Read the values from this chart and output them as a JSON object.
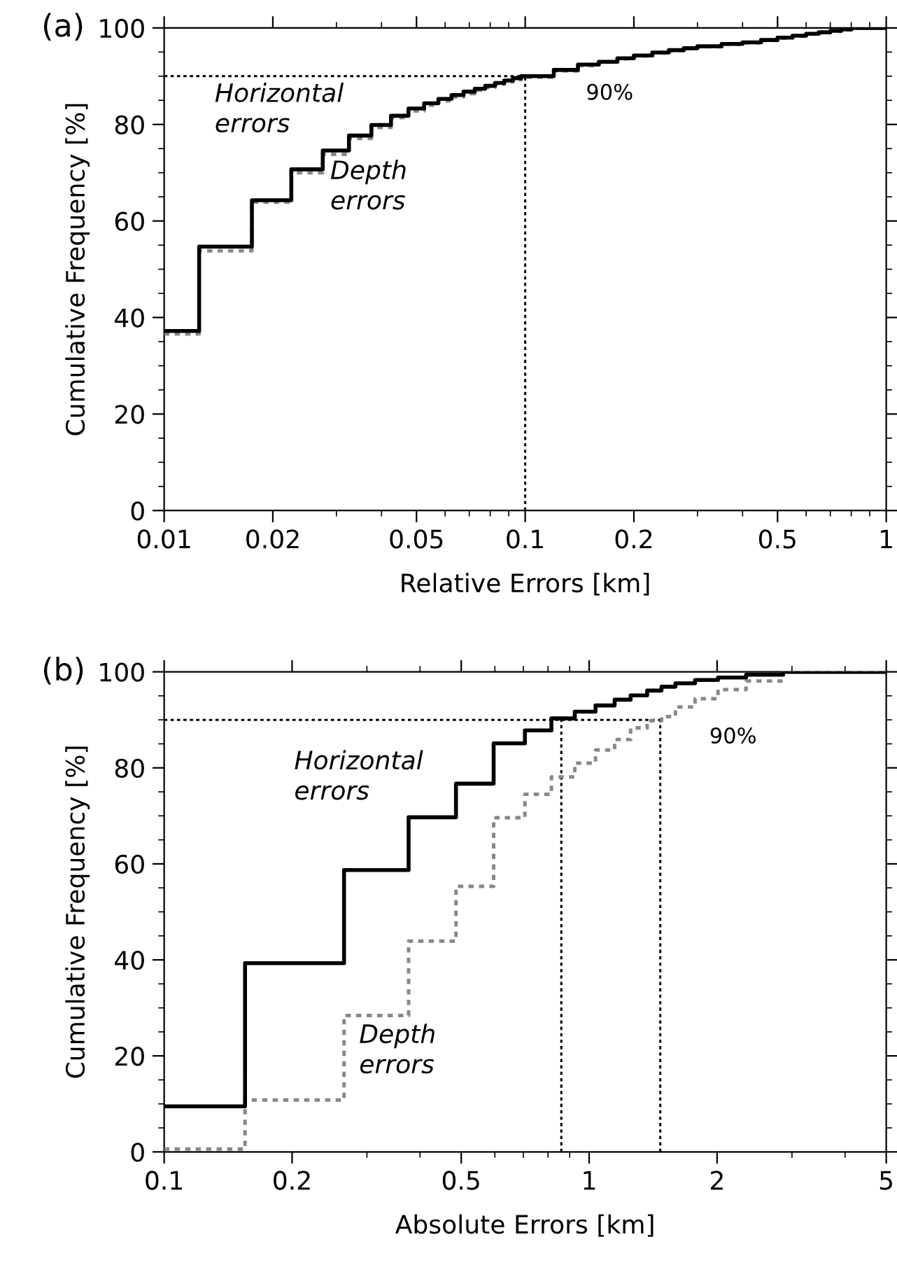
{
  "chart_data": [
    {
      "type": "step",
      "title": "(a)",
      "xlabel": "Relative Errors [km]",
      "ylabel": "Cumulative Frequency [%]",
      "log": "x",
      "xlim": [
        0.01,
        1
      ],
      "xticks": [
        0.01,
        0.02,
        0.05,
        0.1,
        0.2,
        0.5,
        1
      ],
      "ylim": [
        0,
        100
      ],
      "yticks": [
        0,
        20,
        40,
        60,
        80,
        100
      ],
      "grid": false,
      "legend": false,
      "series": [
        {
          "name": "Horizontal\nerrors",
          "color": "#000000",
          "line_style": "solid",
          "x": [
            0.01,
            0.0125,
            0.0175,
            0.0225,
            0.0275,
            0.0325,
            0.0375,
            0.0425,
            0.0475,
            0.0525,
            0.0575,
            0.0625,
            0.0675,
            0.0725,
            0.0775,
            0.0825,
            0.0875,
            0.0925,
            0.0975,
            0.12,
            0.14,
            0.16,
            0.18,
            0.2,
            0.225,
            0.25,
            0.275,
            0.3,
            0.35,
            0.4,
            0.45,
            0.5,
            0.55,
            0.6,
            0.65,
            0.7,
            0.75,
            0.8,
            1
          ],
          "values": [
            37.2,
            54.7,
            64.3,
            70.7,
            74.6,
            77.7,
            79.9,
            81.8,
            83.3,
            84.4,
            85.3,
            86.1,
            86.8,
            87.4,
            88.0,
            88.6,
            89.1,
            89.6,
            90.0,
            91.3,
            92.4,
            93.0,
            93.7,
            94.3,
            94.9,
            95.4,
            95.8,
            96.2,
            96.7,
            97.0,
            97.5,
            98.0,
            98.4,
            98.8,
            99.1,
            99.4,
            99.7,
            100,
            100
          ]
        },
        {
          "name": "Depth\nerrors",
          "color": "#888888",
          "line_style": "dotted",
          "x": [
            0.01,
            0.0125,
            0.0175,
            0.0225,
            0.0275,
            0.0325,
            0.0375,
            0.0425,
            0.0475,
            0.0525,
            0.0575,
            0.0625,
            0.0675,
            0.0725,
            0.0775,
            0.0825,
            0.0875,
            0.0925,
            0.0975,
            0.12,
            0.14,
            0.16,
            0.18,
            0.2,
            0.225,
            0.25,
            0.275,
            0.3,
            0.35,
            0.4,
            0.45,
            0.5,
            0.55,
            0.6,
            0.65,
            0.7,
            0.75,
            0.8,
            1
          ],
          "values": [
            36.6,
            53.8,
            63.9,
            70.0,
            73.8,
            77.1,
            79.4,
            81.4,
            82.8,
            84.0,
            84.9,
            85.7,
            86.4,
            87.1,
            87.7,
            88.3,
            88.8,
            89.3,
            89.8,
            91.1,
            92.2,
            92.9,
            93.6,
            94.2,
            94.8,
            95.3,
            95.7,
            96.1,
            96.6,
            96.9,
            97.4,
            97.9,
            98.3,
            98.7,
            99.0,
            99.3,
            99.6,
            100,
            100
          ]
        }
      ],
      "ref_lines": [
        {
          "axis": "y",
          "value": 90,
          "color": "#000000",
          "line_style": "dotted"
        },
        {
          "axis": "x",
          "value": 0.1,
          "color": "#000000",
          "line_style": "dotted"
        }
      ],
      "annotations": [
        "90%"
      ]
    },
    {
      "type": "step",
      "title": "(b)",
      "xlabel": "Absolute Errors [km]",
      "ylabel": "Cumulative Frequency [%]",
      "log": "x",
      "xlim": [
        0.1,
        5
      ],
      "xticks": [
        0.1,
        0.2,
        0.5,
        1,
        2,
        5
      ],
      "ylim": [
        0,
        100
      ],
      "yticks": [
        0,
        20,
        40,
        60,
        80,
        100
      ],
      "grid": false,
      "legend": false,
      "series": [
        {
          "name": "Horizontal\nerrors",
          "color": "#000000",
          "line_style": "solid",
          "x": [
            0.1,
            0.155,
            0.265,
            0.376,
            0.486,
            0.596,
            0.706,
            0.815,
            0.925,
            1.035,
            1.148,
            1.252,
            1.369,
            1.48,
            1.596,
            1.775,
            2.01,
            2.34,
            2.86,
            5
          ],
          "values": [
            9.5,
            39.3,
            58.7,
            69.7,
            76.7,
            85.1,
            87.8,
            90.3,
            91.7,
            93.0,
            94.2,
            95.1,
            96.1,
            96.9,
            97.6,
            98.3,
            98.8,
            99.4,
            100,
            100
          ]
        },
        {
          "name": "Depth\nerrors",
          "color": "#888888",
          "line_style": "dotted",
          "x": [
            0.1,
            0.155,
            0.265,
            0.376,
            0.486,
            0.596,
            0.706,
            0.815,
            0.925,
            1.035,
            1.148,
            1.252,
            1.369,
            1.48,
            1.596,
            1.775,
            2.01,
            2.34,
            2.86,
            5
          ],
          "values": [
            0.6,
            10.8,
            28.4,
            43.9,
            55.3,
            69.6,
            74.5,
            78.1,
            81.0,
            83.7,
            85.9,
            88.3,
            89.8,
            90.7,
            92.7,
            94.4,
            96.3,
            98.1,
            100,
            100
          ]
        }
      ],
      "ref_lines": [
        {
          "axis": "y",
          "value": 90,
          "color": "#000000",
          "line_style": "dotted"
        },
        {
          "axis": "x",
          "value": 0.86,
          "color": "#000000",
          "line_style": "dotted"
        },
        {
          "axis": "x",
          "value": 1.47,
          "color": "#000000",
          "line_style": "dotted"
        }
      ],
      "annotations": [
        "90%"
      ]
    }
  ]
}
